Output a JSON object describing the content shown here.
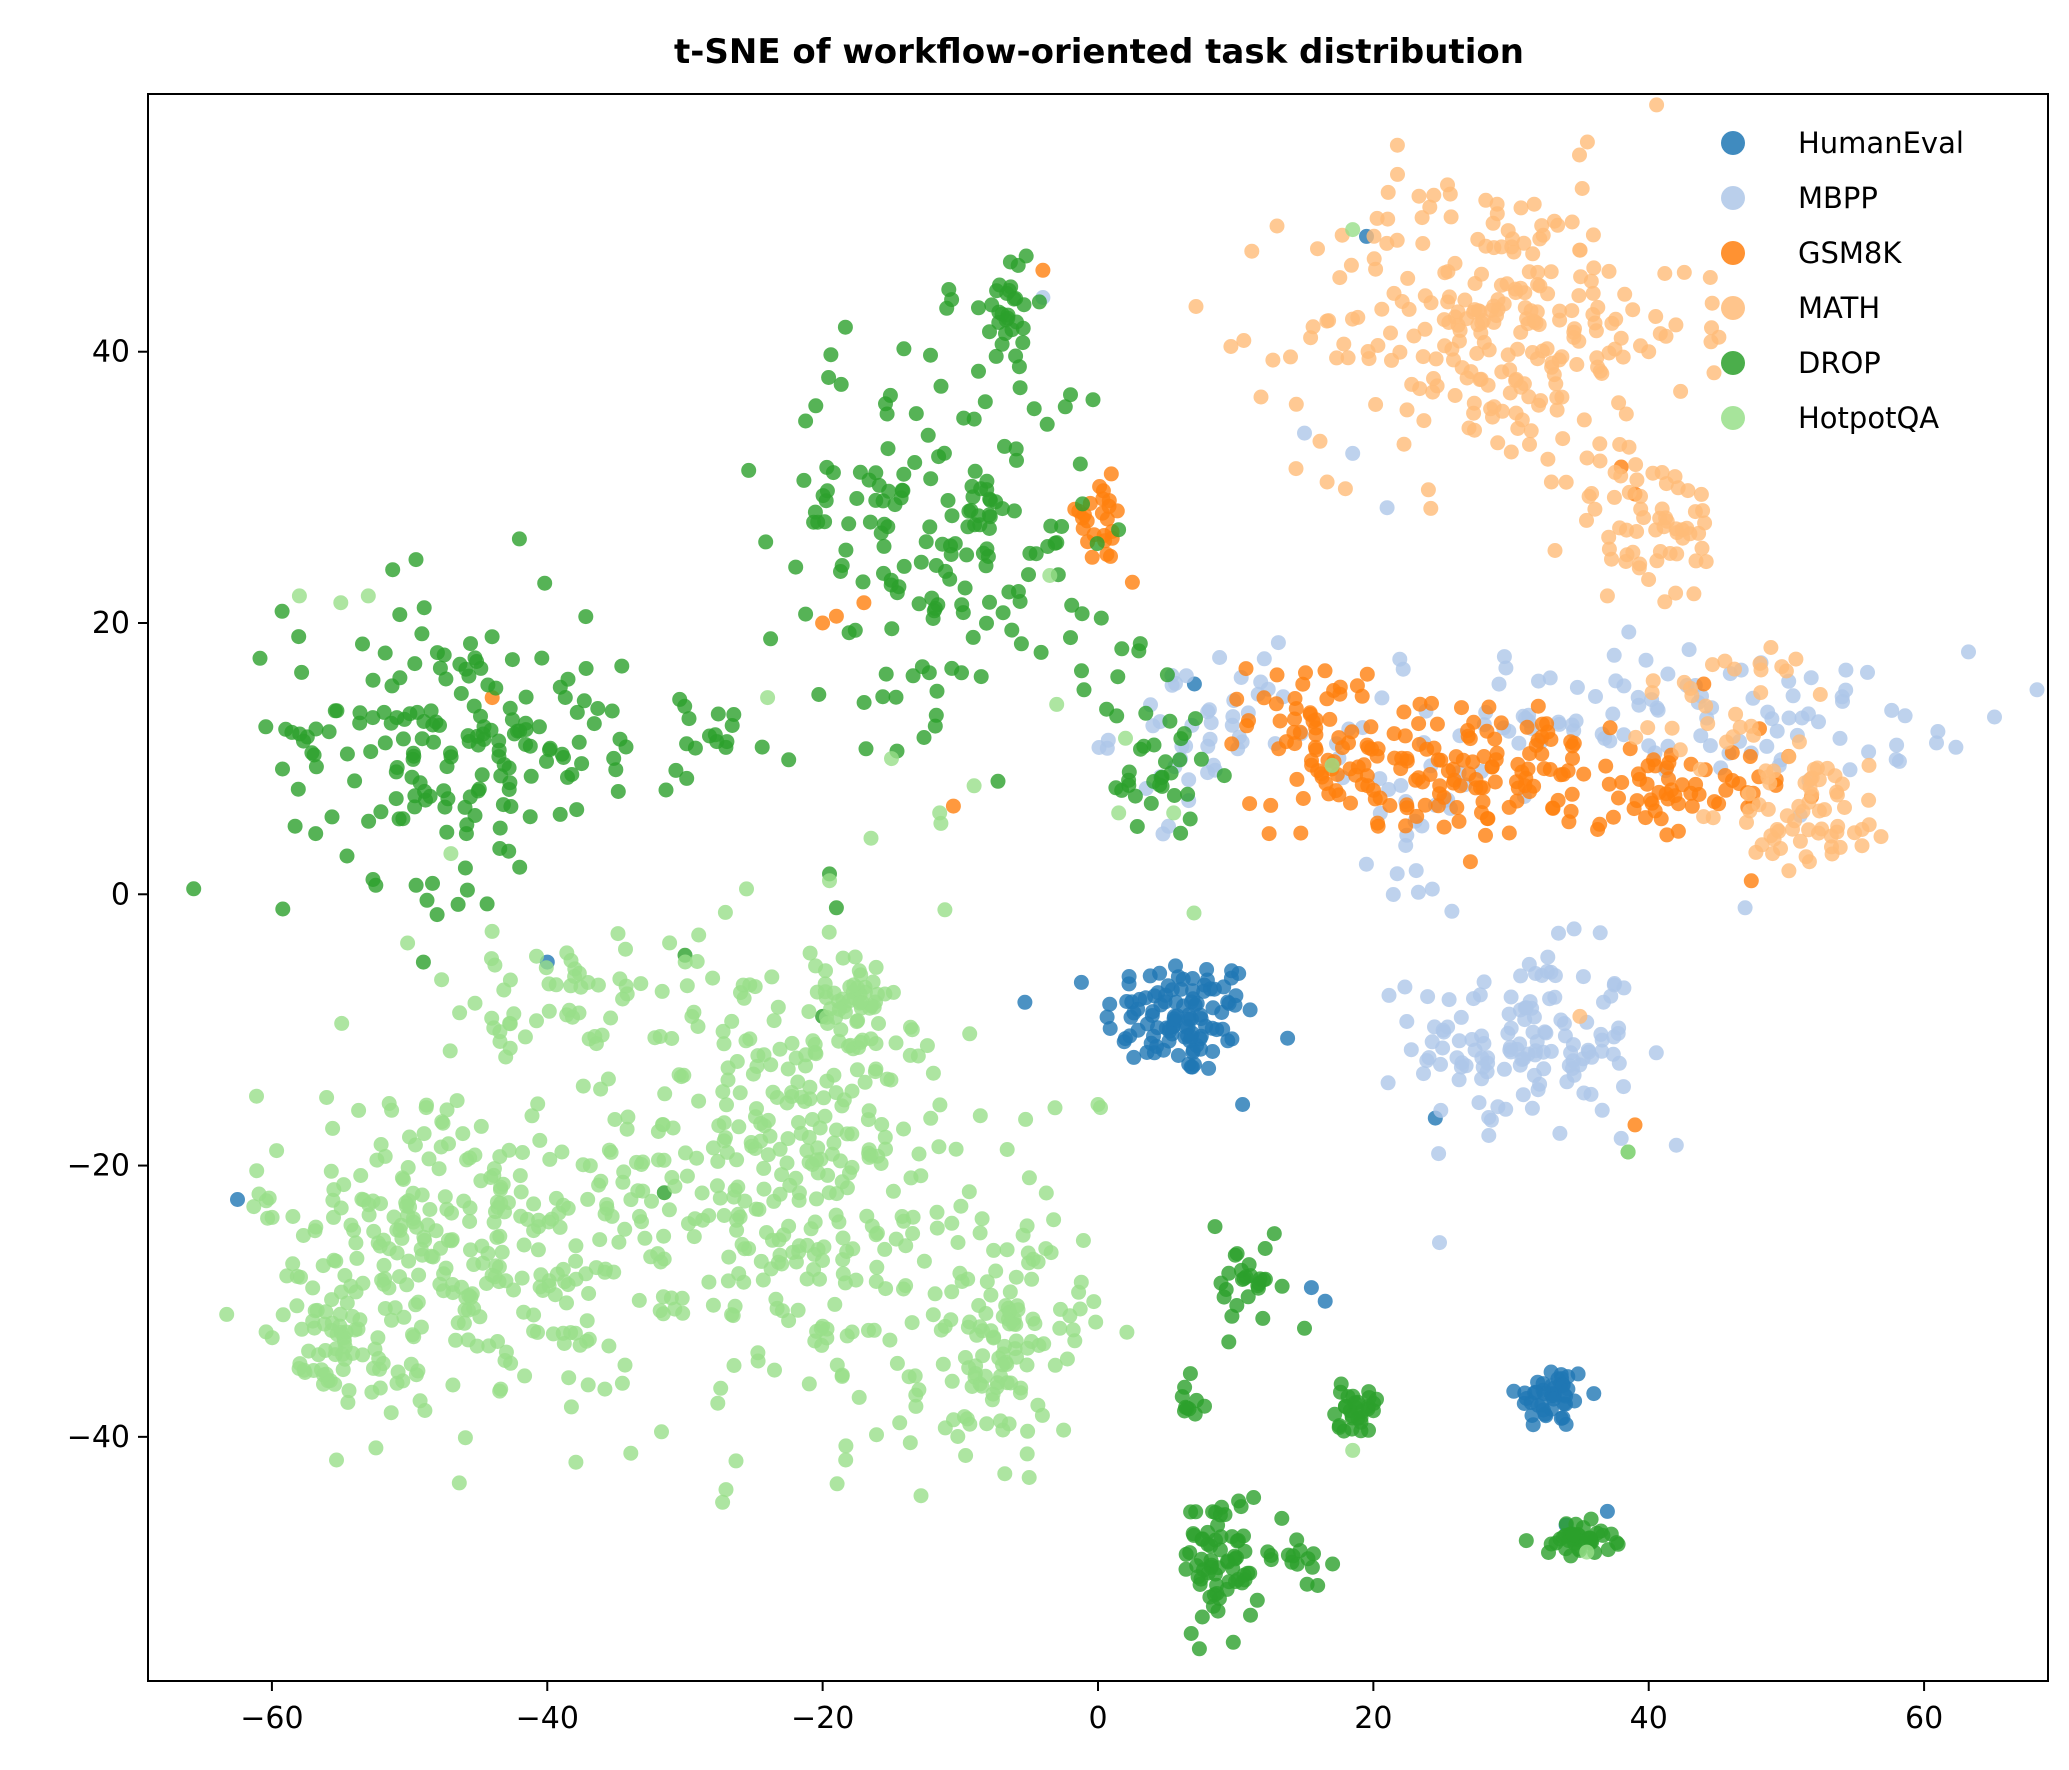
{
  "chart_data": {
    "type": "scatter",
    "title": "t-SNE of workflow-oriented task distribution",
    "xlabel": "",
    "ylabel": "",
    "xlim": [
      -69,
      69
    ],
    "ylim": [
      -58,
      59
    ],
    "xticks": [
      -60,
      -40,
      -20,
      0,
      20,
      40,
      60
    ],
    "yticks": [
      -40,
      -20,
      0,
      20,
      40
    ],
    "xtick_labels": [
      "−60",
      "−40",
      "−20",
      "0",
      "20",
      "40",
      "60"
    ],
    "ytick_labels": [
      "−40",
      "−20",
      "0",
      "20",
      "40"
    ],
    "grid": false,
    "legend_position": "top-right",
    "series": [
      {
        "name": "HumanEval",
        "color": "#1f77b4",
        "clusters": [
          {
            "cx": 6,
            "cy": -9,
            "sx": 2.8,
            "sy": 2.2,
            "n": 110
          },
          {
            "cx": 33,
            "cy": -37,
            "sx": 1.3,
            "sy": 1.2,
            "n": 45
          }
        ],
        "points": [
          [
            -62.5,
            -22.5
          ],
          [
            19.5,
            48.5
          ],
          [
            16.5,
            -30
          ],
          [
            15.5,
            -29
          ],
          [
            24.5,
            -16.5
          ],
          [
            10.5,
            -15.5
          ],
          [
            7,
            15.5
          ],
          [
            34,
            -46.5
          ],
          [
            37,
            -45.5
          ],
          [
            -40,
            -5
          ]
        ]
      },
      {
        "name": "MBPP",
        "color": "#aec7e8",
        "clusters": [
          {
            "cx": 31,
            "cy": -11,
            "sx": 4,
            "sy": 3.5,
            "n": 130
          },
          {
            "cx": 40,
            "cy": 13,
            "sx": 12,
            "sy": 2.5,
            "n": 110
          },
          {
            "cx": 8,
            "cy": 12,
            "sx": 3.5,
            "sy": 3,
            "n": 45
          },
          {
            "cx": 23,
            "cy": 4,
            "sx": 1.5,
            "sy": 2.5,
            "n": 20
          }
        ],
        "points": [
          [
            -4,
            44
          ],
          [
            15,
            34
          ],
          [
            18.5,
            32.5
          ],
          [
            21,
            28.5
          ],
          [
            58,
            11
          ],
          [
            61,
            12
          ],
          [
            47,
            -1
          ],
          [
            38,
            -18
          ],
          [
            42,
            -18.5
          ]
        ]
      },
      {
        "name": "GSM8K",
        "color": "#ff7f0e",
        "clusters": [
          {
            "cx": 27,
            "cy": 9,
            "sx": 7,
            "sy": 2.4,
            "n": 150
          },
          {
            "cx": 16,
            "cy": 13,
            "sx": 2.5,
            "sy": 2.2,
            "n": 45
          },
          {
            "cx": 42,
            "cy": 7,
            "sx": 4,
            "sy": 2,
            "n": 50
          },
          {
            "cx": 0,
            "cy": 27.5,
            "sx": 1.3,
            "sy": 1.6,
            "n": 25
          }
        ],
        "points": [
          [
            -4,
            46
          ],
          [
            -20,
            20
          ],
          [
            -19,
            20.5
          ],
          [
            -17,
            21.5
          ],
          [
            -10.5,
            6.5
          ],
          [
            2.5,
            23
          ],
          [
            38,
            31.5
          ],
          [
            39,
            29.5
          ],
          [
            39,
            -17
          ],
          [
            -44,
            14.5
          ],
          [
            44,
            15.5
          ]
        ]
      },
      {
        "name": "MATH",
        "color": "#ffbb78",
        "clusters": [
          {
            "cx": 29,
            "cy": 42,
            "sx": 7,
            "sy": 5.5,
            "n": 260
          },
          {
            "cx": 40,
            "cy": 27,
            "sx": 3,
            "sy": 3,
            "n": 60
          },
          {
            "cx": 52,
            "cy": 6,
            "sx": 3,
            "sy": 2,
            "n": 60
          },
          {
            "cx": 46,
            "cy": 14,
            "sx": 4,
            "sy": 2.5,
            "n": 30
          }
        ],
        "points": [
          [
            35,
            -9
          ],
          [
            38,
            41
          ],
          [
            40,
            40
          ],
          [
            56,
            9.5
          ],
          [
            49,
            3
          ],
          [
            37,
            22
          ]
        ]
      },
      {
        "name": "DROP",
        "color": "#2ca02c",
        "clusters": [
          {
            "cx": -48,
            "cy": 12,
            "sx": 5.5,
            "sy": 5.5,
            "n": 150
          },
          {
            "cx": -12,
            "cy": 27,
            "sx": 6,
            "sy": 7,
            "n": 170
          },
          {
            "cx": -6.5,
            "cy": 43,
            "sx": 0.9,
            "sy": 2.5,
            "n": 30
          },
          {
            "cx": -37,
            "cy": 11,
            "sx": 4,
            "sy": 2.2,
            "n": 35
          },
          {
            "cx": 4,
            "cy": 9,
            "sx": 1.8,
            "sy": 3,
            "n": 30
          },
          {
            "cx": 11,
            "cy": -29,
            "sx": 1.2,
            "sy": 1.6,
            "n": 25
          },
          {
            "cx": 9,
            "cy": -49,
            "sx": 1.4,
            "sy": 2.5,
            "n": 70
          },
          {
            "cx": 18.5,
            "cy": -38,
            "sx": 0.9,
            "sy": 0.8,
            "n": 30
          },
          {
            "cx": 35,
            "cy": -47.5,
            "sx": 1.3,
            "sy": 0.6,
            "n": 40
          },
          {
            "cx": 14.5,
            "cy": -48.5,
            "sx": 1,
            "sy": 1,
            "n": 15
          },
          {
            "cx": 6.5,
            "cy": -37,
            "sx": 0.7,
            "sy": 1.3,
            "n": 10
          },
          {
            "cx": -27,
            "cy": 12,
            "sx": 2,
            "sy": 1.2,
            "n": 12
          },
          {
            "cx": 0,
            "cy": 17,
            "sx": 2,
            "sy": 2.5,
            "n": 12
          }
        ],
        "points": [
          [
            -20,
            -9
          ],
          [
            -30,
            -4.5
          ],
          [
            -31.5,
            -22
          ],
          [
            -19.5,
            1.5
          ],
          [
            -19,
            -1
          ],
          [
            -49,
            -5
          ],
          [
            -48,
            -1.5
          ],
          [
            -42,
            2
          ],
          [
            8.5,
            -24.5
          ],
          [
            9.5,
            -33
          ],
          [
            15,
            -32
          ],
          [
            38.5,
            -19
          ],
          [
            6,
            4.5
          ]
        ]
      },
      {
        "name": "HotpotQA",
        "color": "#98df8a",
        "clusters": [
          {
            "cx": -47,
            "cy": -26,
            "sx": 7,
            "sy": 6,
            "n": 300
          },
          {
            "cx": -22,
            "cy": -21,
            "sx": 8,
            "sy": 9,
            "n": 380
          },
          {
            "cx": -7,
            "cy": -33,
            "sx": 3,
            "sy": 4,
            "n": 110
          },
          {
            "cx": -40,
            "cy": -8,
            "sx": 5,
            "sy": 2.5,
            "n": 50
          },
          {
            "cx": -18,
            "cy": -8,
            "sx": 2.5,
            "sy": 1.5,
            "n": 40
          },
          {
            "cx": -55,
            "cy": -34,
            "sx": 2.5,
            "sy": 2,
            "n": 40
          }
        ],
        "points": [
          [
            -58,
            22
          ],
          [
            -53,
            22
          ],
          [
            -55,
            21.5
          ],
          [
            -47,
            3
          ],
          [
            -38,
            -5.5
          ],
          [
            -29,
            -3
          ],
          [
            -19.5,
            1
          ],
          [
            -11.5,
            6
          ],
          [
            -9,
            8
          ],
          [
            -15,
            10
          ],
          [
            -3,
            14
          ],
          [
            -24,
            14.5
          ],
          [
            2,
            11.5
          ],
          [
            1.5,
            6
          ],
          [
            5.5,
            6
          ],
          [
            17,
            9.5
          ],
          [
            18.5,
            49
          ],
          [
            38.5,
            -19
          ],
          [
            35.5,
            -48.5
          ],
          [
            18.5,
            -41
          ],
          [
            0,
            -15.5
          ],
          [
            -3.5,
            23.5
          ],
          [
            -5,
            -43
          ],
          [
            -2.5,
            -39.5
          ]
        ]
      }
    ]
  }
}
